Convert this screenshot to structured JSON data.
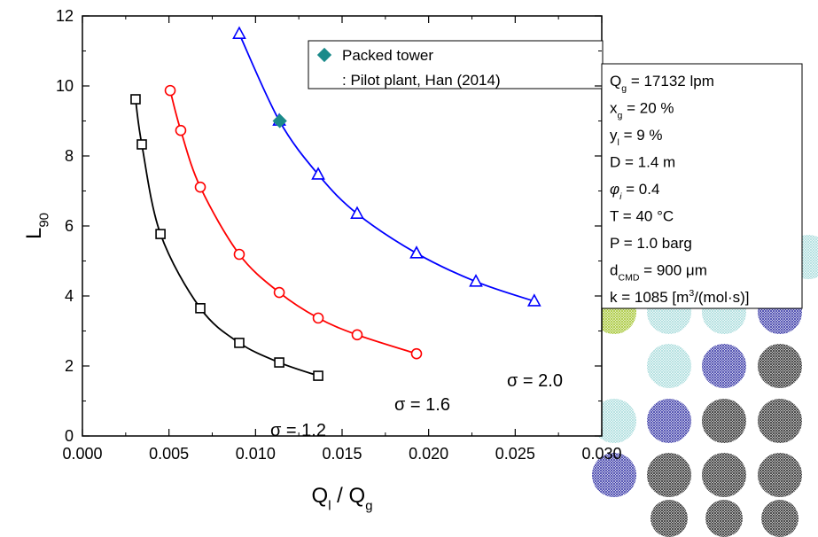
{
  "chart_data": {
    "type": "line",
    "x_label": [
      {
        "text": "Q"
      },
      {
        "text": "l",
        "style": "sub"
      },
      {
        "text": " / Q"
      },
      {
        "text": "g",
        "style": "sub"
      }
    ],
    "y_label": [
      {
        "text": "L"
      },
      {
        "text": "90",
        "style": "sub"
      }
    ],
    "xlim": [
      0,
      0.03
    ],
    "ylim": [
      0,
      12
    ],
    "xticks": [
      {
        "value": 0,
        "label": "0.000"
      },
      {
        "value": 0.005,
        "label": "0.005"
      },
      {
        "value": 0.01,
        "label": "0.010"
      },
      {
        "value": 0.015,
        "label": "0.015"
      },
      {
        "value": 0.02,
        "label": "0.020"
      },
      {
        "value": 0.025,
        "label": "0.025"
      },
      {
        "value": 0.03,
        "label": "0.030"
      }
    ],
    "yticks": [
      0,
      2,
      4,
      6,
      8,
      10,
      12
    ],
    "series": [
      {
        "name": "σ = 1.2",
        "color": "#000000",
        "marker": "square",
        "x": [
          0.00307,
          0.00343,
          0.00451,
          0.00681,
          0.00906,
          0.01137,
          0.01362
        ],
        "values": [
          9.62,
          8.33,
          5.77,
          3.65,
          2.66,
          2.1,
          1.72
        ]
      },
      {
        "name": "σ = 1.6",
        "color": "#ff0000",
        "marker": "circle",
        "x": [
          0.00507,
          0.00568,
          0.00681,
          0.00906,
          0.01137,
          0.01362,
          0.01587,
          0.0193
        ],
        "values": [
          9.87,
          8.73,
          7.11,
          5.19,
          4.1,
          3.37,
          2.89,
          2.35
        ]
      },
      {
        "name": "σ = 2.0",
        "color": "#0000ff",
        "marker": "triangle",
        "x": [
          0.00906,
          0.01137,
          0.01362,
          0.01587,
          0.0193,
          0.02273,
          0.0261
        ],
        "values": [
          11.49,
          9.01,
          7.47,
          6.35,
          5.22,
          4.41,
          3.85
        ]
      }
    ],
    "reference": {
      "type": "scatter",
      "name": "Packed tower",
      "note": ": Pilot plant, Han (2014)",
      "color": "#1a8a8a",
      "marker": "diamond",
      "x": [
        0.0114
      ],
      "values": [
        9.0
      ]
    },
    "info_box": [
      [
        {
          "text": "Q"
        },
        {
          "text": "g",
          "style": "sub"
        },
        {
          "text": " = 17132 lpm"
        }
      ],
      [
        {
          "text": "x"
        },
        {
          "text": "g",
          "style": "sub"
        },
        {
          "text": " = 20 %"
        }
      ],
      [
        {
          "text": "y"
        },
        {
          "text": "l",
          "style": "sub"
        },
        {
          "text": " = 9 %"
        }
      ],
      [
        {
          "text": "D = 1.4 m"
        }
      ],
      [
        {
          "text": "φ",
          "style": "italic"
        },
        {
          "text": "i",
          "style": "sub-italic"
        },
        {
          "text": " = 0.4"
        }
      ],
      [
        {
          "text": "T = 40 °C"
        }
      ],
      [
        {
          "text": "P = 1.0 barg"
        }
      ],
      [
        {
          "text": "d"
        },
        {
          "text": "CMD",
          "style": "sub"
        },
        {
          "text": " = 900 μm"
        }
      ],
      [
        {
          "text": "k = 1085 [m"
        },
        {
          "text": "3",
          "style": "sup"
        },
        {
          "text": "/(mol·s)]"
        }
      ]
    ]
  }
}
